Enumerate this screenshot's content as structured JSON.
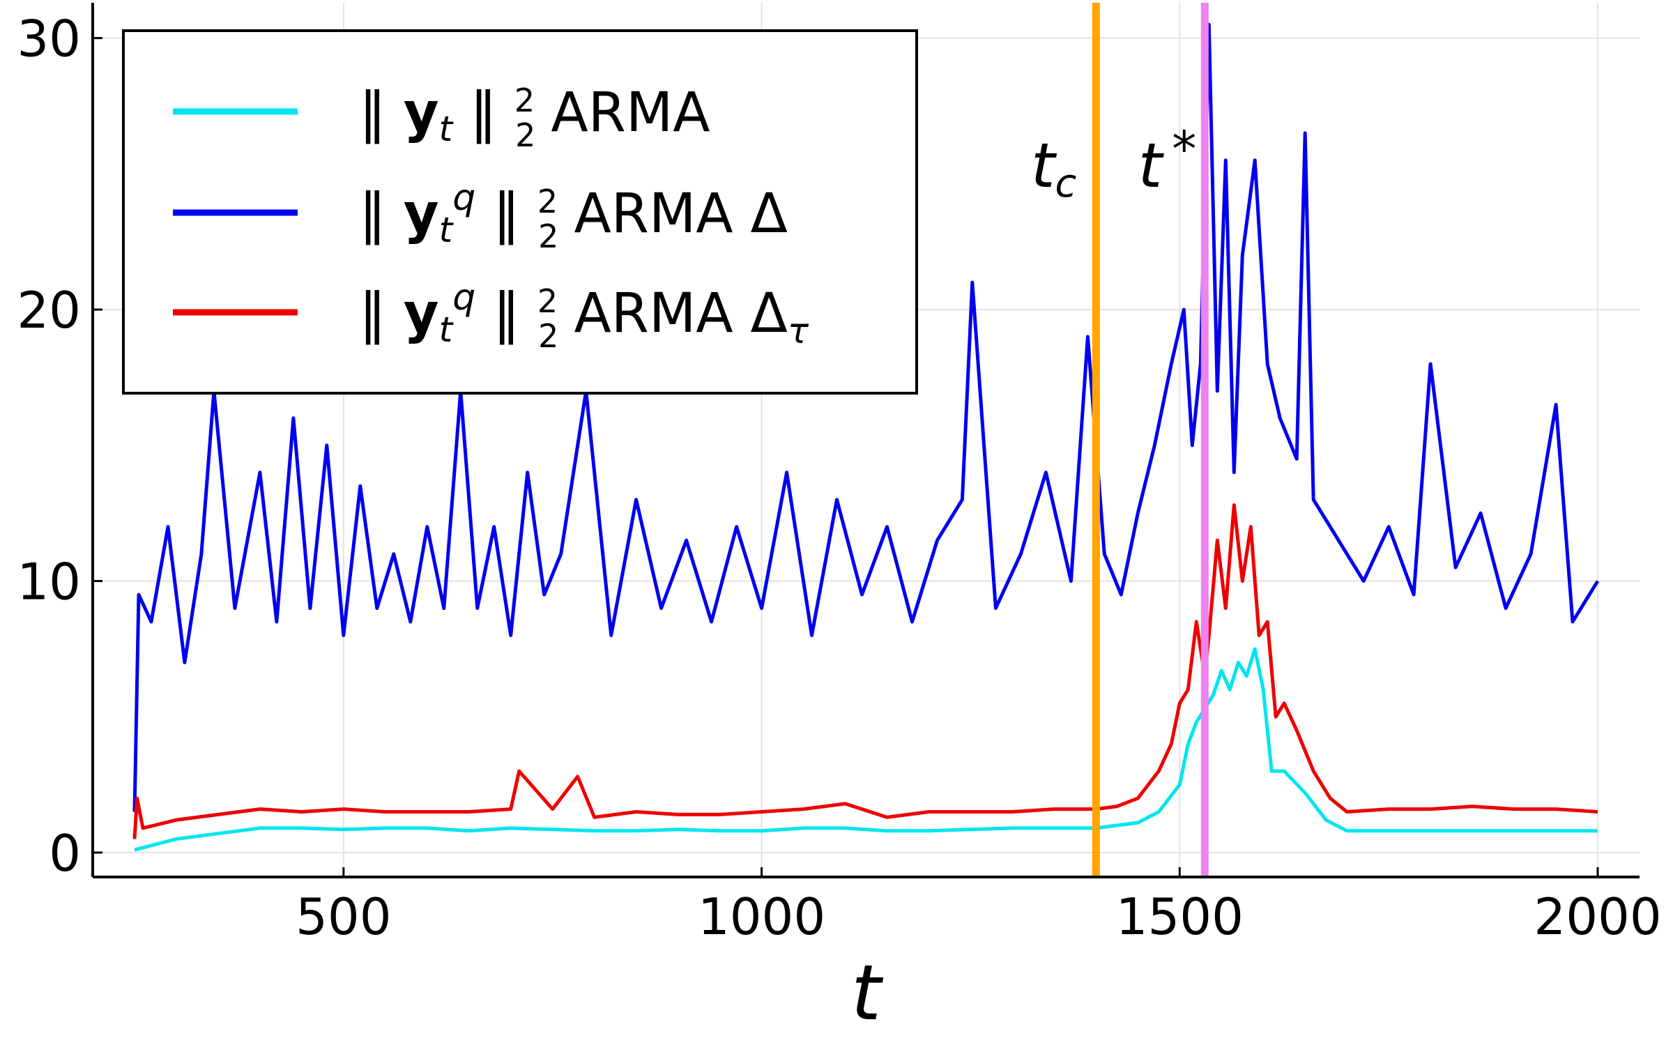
{
  "chart_data": {
    "type": "line",
    "xlabel": "t",
    "ylabel": "",
    "xlim": [
      200,
      2050
    ],
    "ylim": [
      -0.9,
      31.3
    ],
    "xticks": [
      500,
      1000,
      1500,
      2000
    ],
    "yticks": [
      0,
      10,
      20,
      30
    ],
    "grid": true,
    "legend_position": "top-left",
    "vlines": [
      {
        "label": "t_c",
        "x": 1400,
        "color": "#ffa500"
      },
      {
        "label": "t*",
        "x": 1530,
        "color": "#ee82ee"
      }
    ],
    "series": [
      {
        "name": "‖ yₜ ‖²₂ ARMA",
        "color": "#00e5ee",
        "x": [
          250,
          300,
          350,
          400,
          450,
          500,
          550,
          600,
          650,
          700,
          750,
          800,
          850,
          900,
          950,
          1000,
          1050,
          1100,
          1150,
          1200,
          1250,
          1300,
          1350,
          1400,
          1425,
          1450,
          1475,
          1500,
          1510,
          1520,
          1530,
          1540,
          1550,
          1560,
          1570,
          1580,
          1590,
          1600,
          1610,
          1625,
          1650,
          1675,
          1700,
          1750,
          1800,
          1850,
          1900,
          1950,
          2000
        ],
        "y": [
          0.1,
          0.5,
          0.7,
          0.9,
          0.9,
          0.85,
          0.9,
          0.9,
          0.8,
          0.9,
          0.85,
          0.8,
          0.8,
          0.85,
          0.8,
          0.8,
          0.9,
          0.9,
          0.8,
          0.8,
          0.85,
          0.9,
          0.9,
          0.9,
          1.0,
          1.1,
          1.5,
          2.5,
          4.0,
          4.8,
          5.3,
          5.8,
          6.7,
          6.0,
          7.0,
          6.5,
          7.5,
          6.0,
          3.0,
          3.0,
          2.2,
          1.2,
          0.8,
          0.8,
          0.8,
          0.8,
          0.8,
          0.8,
          0.8
        ]
      },
      {
        "name": "‖ yₜ^q ‖²₂ ARMA Δ",
        "color": "#0000ee",
        "x": [
          250,
          255,
          270,
          290,
          310,
          330,
          345,
          370,
          400,
          420,
          440,
          460,
          480,
          500,
          520,
          540,
          560,
          580,
          600,
          620,
          640,
          660,
          680,
          700,
          720,
          740,
          760,
          790,
          820,
          850,
          880,
          910,
          940,
          970,
          1000,
          1030,
          1060,
          1090,
          1120,
          1150,
          1180,
          1210,
          1240,
          1252,
          1280,
          1310,
          1340,
          1370,
          1390,
          1410,
          1430,
          1450,
          1470,
          1490,
          1505,
          1515,
          1525,
          1535,
          1545,
          1555,
          1565,
          1575,
          1590,
          1605,
          1620,
          1640,
          1650,
          1660,
          1680,
          1700,
          1720,
          1750,
          1780,
          1800,
          1830,
          1860,
          1890,
          1920,
          1950,
          1970,
          2000
        ],
        "y": [
          1.5,
          9.5,
          8.5,
          12.0,
          7.0,
          11.0,
          17.0,
          9.0,
          14.0,
          8.5,
          16.0,
          9.0,
          15.0,
          8.0,
          13.5,
          9.0,
          11.0,
          8.5,
          12.0,
          9.0,
          17.0,
          9.0,
          12.0,
          8.0,
          14.0,
          9.5,
          11.0,
          17.0,
          8.0,
          13.0,
          9.0,
          11.5,
          8.5,
          12.0,
          9.0,
          14.0,
          8.0,
          13.0,
          9.5,
          12.0,
          8.5,
          11.5,
          13.0,
          21.0,
          9.0,
          11.0,
          14.0,
          10.0,
          19.0,
          11.0,
          9.5,
          12.5,
          15.0,
          18.0,
          20.0,
          15.0,
          18.0,
          30.5,
          17.0,
          25.5,
          14.0,
          22.0,
          25.5,
          18.0,
          16.0,
          14.5,
          26.5,
          13.0,
          12.0,
          11.0,
          10.0,
          12.0,
          9.5,
          18.0,
          10.5,
          12.5,
          9.0,
          11.0,
          16.5,
          8.5,
          10.0
        ]
      },
      {
        "name": "‖ yₜ^q ‖²₂ ARMA Δτ",
        "color": "#ee0000",
        "x": [
          250,
          253,
          260,
          300,
          350,
          400,
          450,
          500,
          550,
          600,
          650,
          700,
          710,
          750,
          780,
          800,
          850,
          900,
          950,
          1000,
          1050,
          1100,
          1150,
          1200,
          1250,
          1300,
          1350,
          1400,
          1425,
          1450,
          1475,
          1490,
          1500,
          1510,
          1520,
          1530,
          1535,
          1545,
          1555,
          1565,
          1575,
          1585,
          1595,
          1605,
          1615,
          1625,
          1640,
          1660,
          1680,
          1700,
          1750,
          1800,
          1850,
          1900,
          1950,
          2000
        ],
        "y": [
          0.5,
          2.0,
          0.9,
          1.2,
          1.4,
          1.6,
          1.5,
          1.6,
          1.5,
          1.5,
          1.5,
          1.6,
          3.0,
          1.6,
          2.8,
          1.3,
          1.5,
          1.4,
          1.4,
          1.5,
          1.6,
          1.8,
          1.3,
          1.5,
          1.5,
          1.5,
          1.6,
          1.6,
          1.7,
          2.0,
          3.0,
          4.0,
          5.5,
          6.0,
          8.5,
          6.5,
          8.0,
          11.5,
          9.0,
          12.8,
          10.0,
          12.0,
          8.0,
          8.5,
          5.0,
          5.5,
          4.5,
          3.0,
          2.0,
          1.5,
          1.6,
          1.6,
          1.7,
          1.6,
          1.6,
          1.5
        ]
      }
    ]
  }
}
